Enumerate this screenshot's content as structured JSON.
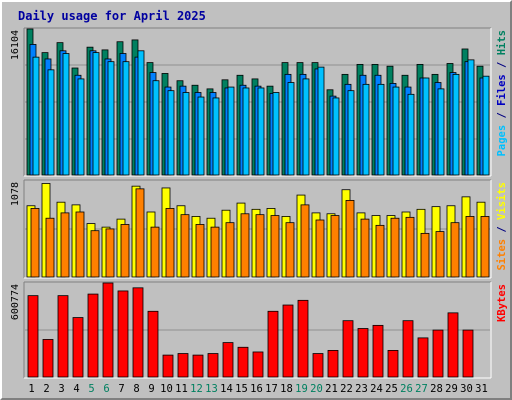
{
  "chart_data": {
    "type": "bar",
    "title": "Daily usage for April 2025",
    "categories": [
      "1",
      "2",
      "3",
      "4",
      "5",
      "6",
      "7",
      "8",
      "9",
      "10",
      "11",
      "12",
      "13",
      "14",
      "15",
      "16",
      "17",
      "18",
      "19",
      "20",
      "21",
      "22",
      "23",
      "24",
      "25",
      "26",
      "27",
      "28",
      "29",
      "30",
      "31"
    ],
    "weekend_days": [
      "5",
      "6",
      "12",
      "13",
      "19",
      "20",
      "26",
      "27"
    ],
    "panels": [
      {
        "name": "hits-files-pages",
        "ymax_label": "16104",
        "ylim": [
          0,
          16104
        ],
        "right_label_parts": [
          {
            "text": "Pages",
            "color": "#00c0ff"
          },
          {
            "text": " / ",
            "color": "#000080"
          },
          {
            "text": "Files",
            "color": "#0000c0"
          },
          {
            "text": " / ",
            "color": "#000080"
          },
          {
            "text": "Hits",
            "color": "#008060"
          }
        ],
        "series": [
          {
            "name": "Hits",
            "color": "#008060",
            "values": [
              16104,
              13500,
              14600,
              11800,
              14100,
              13800,
              14700,
              14900,
              12400,
              11200,
              10400,
              9900,
              9500,
              10500,
              11000,
              10600,
              9800,
              12400,
              12400,
              12400,
              9400,
              11100,
              12200,
              12200,
              12000,
              11000,
              12200,
              11100,
              12300,
              13900,
              12000
            ]
          },
          {
            "name": "Files",
            "color": "#0080ff",
            "values": [
              14400,
              12800,
              13700,
              11000,
              13700,
              12800,
              13400,
              13000,
              11300,
              9700,
              9800,
              9100,
              9100,
              9600,
              9900,
              9800,
              9000,
              11100,
              11100,
              11700,
              8700,
              10000,
              11000,
              11000,
              10100,
              9700,
              10700,
              10200,
              11300,
              12500,
              10700
            ]
          },
          {
            "name": "Pages",
            "color": "#00c0ff",
            "values": [
              13000,
              11600,
              13400,
              10600,
              13500,
              12500,
              12500,
              13700,
              10400,
              9300,
              9100,
              8600,
              8500,
              9700,
              9600,
              9600,
              9100,
              10200,
              10600,
              11900,
              8500,
              9300,
              10000,
              10000,
              9700,
              8900,
              10700,
              9500,
              11100,
              12700,
              10900
            ]
          }
        ]
      },
      {
        "name": "visits-sites",
        "ymax_label": "1078",
        "ylim": [
          0,
          1078
        ],
        "right_label_parts": [
          {
            "text": "Sites",
            "color": "#ff8000"
          },
          {
            "text": " / ",
            "color": "#000080"
          },
          {
            "text": "Visits",
            "color": "#ffff00"
          }
        ],
        "series": [
          {
            "name": "Visits",
            "color": "#ffff00",
            "values": [
              800,
              1050,
              840,
              810,
              600,
              560,
              650,
              1020,
              730,
              1000,
              800,
              680,
              660,
              750,
              830,
              760,
              770,
              680,
              920,
              720,
              710,
              980,
              720,
              690,
              690,
              730,
              760,
              790,
              800,
              900,
              840
            ]
          },
          {
            "name": "Sites",
            "color": "#ff8000",
            "values": [
              770,
              660,
              720,
              730,
              520,
              540,
              590,
              990,
              560,
              770,
              700,
              590,
              560,
              610,
              710,
              700,
              690,
              610,
              810,
              640,
              690,
              860,
              650,
              580,
              660,
              670,
              490,
              510,
              610,
              680,
              680
            ]
          }
        ]
      },
      {
        "name": "kbytes",
        "ymax_label": "600774",
        "ylim": [
          0,
          600774
        ],
        "right_label_parts": [
          {
            "text": "KBytes",
            "color": "#ff0000"
          }
        ],
        "series": [
          {
            "name": "KBytes",
            "color": "#ff0000",
            "values": [
              520000,
              240000,
              520000,
              380000,
              530000,
              600774,
              550000,
              570000,
              420000,
              140000,
              150000,
              140000,
              150000,
              220000,
              190000,
              160000,
              420000,
              460000,
              490000,
              150000,
              170000,
              360000,
              310000,
              330000,
              170000,
              360000,
              250000,
              300000,
              410000,
              300000,
              0
            ]
          }
        ]
      }
    ]
  }
}
